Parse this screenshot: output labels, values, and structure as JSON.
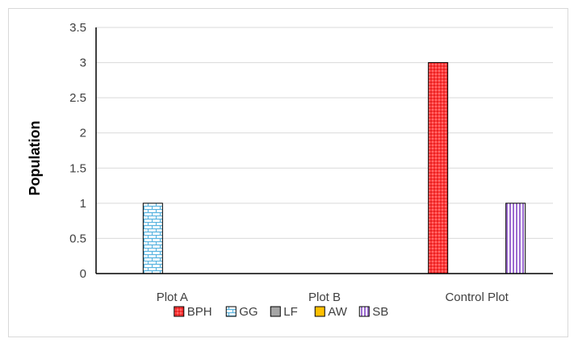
{
  "chart_data": {
    "type": "bar",
    "title": "",
    "xlabel": "",
    "ylabel": "Population",
    "ylim": [
      0,
      3.5
    ],
    "yticks": [
      "0",
      "0.5",
      "1",
      "1.5",
      "2",
      "2.5",
      "3",
      "3.5"
    ],
    "categories": [
      "Plot A",
      "Plot B",
      "Control Plot"
    ],
    "grid": true,
    "legend_position": "bottom",
    "series": [
      {
        "name": "BPH",
        "values": [
          0,
          0,
          3
        ],
        "color": "#ff4d4d",
        "pattern": "dots"
      },
      {
        "name": "GG",
        "values": [
          1,
          0,
          0
        ],
        "color": "#9dd3ee",
        "pattern": "bricks"
      },
      {
        "name": "LF",
        "values": [
          0,
          0,
          0
        ],
        "color": "#a5a5a5",
        "pattern": "solid"
      },
      {
        "name": "AW",
        "values": [
          0,
          0,
          0
        ],
        "color": "#ffc000",
        "pattern": "solid"
      },
      {
        "name": "SB",
        "values": [
          0,
          0,
          1
        ],
        "color": "#c9a8e8",
        "pattern": "vertical-lines"
      }
    ]
  }
}
